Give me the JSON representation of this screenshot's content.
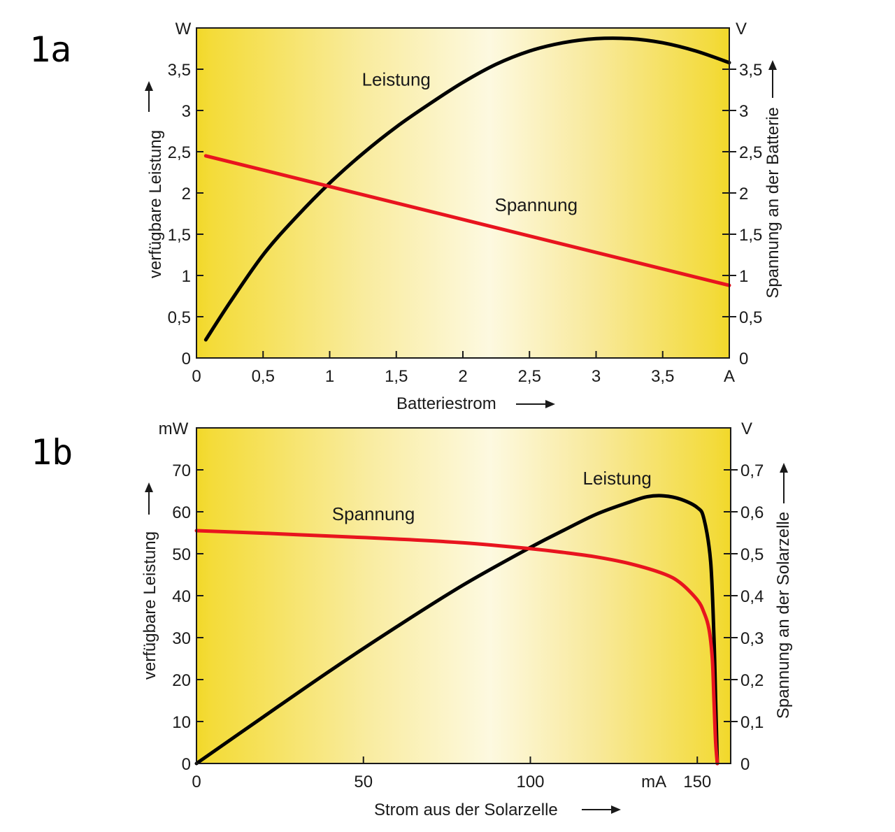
{
  "chart_data": [
    {
      "id": "1a",
      "panel_label": "1a",
      "type": "line",
      "x_axis": {
        "label": "Batteriestrom",
        "range": [
          0,
          4
        ],
        "ticks": [
          {
            "value": 0,
            "label": "0"
          },
          {
            "value": 0.5,
            "label": "0,5"
          },
          {
            "value": 1,
            "label": "1"
          },
          {
            "value": 1.5,
            "label": "1,5"
          },
          {
            "value": 2,
            "label": "2"
          },
          {
            "value": 2.5,
            "label": "2,5"
          },
          {
            "value": 3,
            "label": "3"
          },
          {
            "value": 3.5,
            "label": "3,5"
          },
          {
            "value": 4,
            "label": "A"
          }
        ]
      },
      "y_left": {
        "label": "verfügbare Leistung",
        "unit": "W",
        "range": [
          0,
          4
        ],
        "ticks": [
          {
            "value": 0,
            "label": "0"
          },
          {
            "value": 0.5,
            "label": "0,5"
          },
          {
            "value": 1,
            "label": "1"
          },
          {
            "value": 1.5,
            "label": "1,5"
          },
          {
            "value": 2,
            "label": "2"
          },
          {
            "value": 2.5,
            "label": "2,5"
          },
          {
            "value": 3,
            "label": "3"
          },
          {
            "value": 3.5,
            "label": "3,5"
          }
        ]
      },
      "y_right": {
        "label": "Spannung an der Batterie",
        "unit": "V",
        "range": [
          0,
          4
        ],
        "ticks": [
          {
            "value": 0,
            "label": "0"
          },
          {
            "value": 0.5,
            "label": "0,5"
          },
          {
            "value": 1,
            "label": "1"
          },
          {
            "value": 1.5,
            "label": "1,5"
          },
          {
            "value": 2,
            "label": "2"
          },
          {
            "value": 2.5,
            "label": "2,5"
          },
          {
            "value": 3,
            "label": "3"
          },
          {
            "value": 3.5,
            "label": "3,5"
          }
        ]
      },
      "series": [
        {
          "name": "Leistung",
          "axis": "left",
          "color": "#000000",
          "label_at": {
            "x": 1.5,
            "y": 3.3
          },
          "points": [
            [
              0.07,
              0.22
            ],
            [
              0.25,
              0.67
            ],
            [
              0.5,
              1.25
            ],
            [
              0.75,
              1.71
            ],
            [
              1.0,
              2.12
            ],
            [
              1.25,
              2.48
            ],
            [
              1.5,
              2.8
            ],
            [
              1.75,
              3.08
            ],
            [
              2.0,
              3.34
            ],
            [
              2.25,
              3.56
            ],
            [
              2.5,
              3.72
            ],
            [
              2.75,
              3.82
            ],
            [
              3.0,
              3.87
            ],
            [
              3.25,
              3.87
            ],
            [
              3.5,
              3.82
            ],
            [
              3.75,
              3.72
            ],
            [
              4.0,
              3.58
            ]
          ]
        },
        {
          "name": "Spannung",
          "axis": "right",
          "color": "#e8141e",
          "label_at": {
            "x": 2.55,
            "y": 1.78
          },
          "points": [
            [
              0.07,
              2.45
            ],
            [
              4.0,
              0.88
            ]
          ]
        }
      ]
    },
    {
      "id": "1b",
      "panel_label": "1b",
      "type": "line",
      "x_axis": {
        "label": "Strom aus der Solarzelle",
        "range": [
          0,
          160
        ],
        "ticks": [
          {
            "value": 0,
            "label": "0"
          },
          {
            "value": 50,
            "label": "50"
          },
          {
            "value": 100,
            "label": "100"
          },
          {
            "value": 150,
            "label": "150"
          }
        ],
        "unit_label": {
          "value": 137,
          "label": "mA"
        }
      },
      "y_left": {
        "label": "verfügbare Leistung",
        "unit": "mW",
        "range": [
          0,
          80
        ],
        "ticks": [
          {
            "value": 0,
            "label": "0"
          },
          {
            "value": 10,
            "label": "10"
          },
          {
            "value": 20,
            "label": "20"
          },
          {
            "value": 30,
            "label": "30"
          },
          {
            "value": 40,
            "label": "40"
          },
          {
            "value": 50,
            "label": "50"
          },
          {
            "value": 60,
            "label": "60"
          },
          {
            "value": 70,
            "label": "70"
          }
        ]
      },
      "y_right": {
        "label": "Spannung an der Solarzelle",
        "unit": "V",
        "range": [
          0,
          0.8
        ],
        "ticks": [
          {
            "value": 0,
            "label": "0"
          },
          {
            "value": 0.1,
            "label": "0,1"
          },
          {
            "value": 0.2,
            "label": "0,2"
          },
          {
            "value": 0.3,
            "label": "0,3"
          },
          {
            "value": 0.4,
            "label": "0,4"
          },
          {
            "value": 0.5,
            "label": "0,5"
          },
          {
            "value": 0.6,
            "label": "0,6"
          },
          {
            "value": 0.7,
            "label": "0,7"
          }
        ]
      },
      "series": [
        {
          "name": "Leistung",
          "axis": "left",
          "color": "#000000",
          "label_at": {
            "x": 126,
            "y": 66.5
          },
          "points": [
            [
              0,
              0
            ],
            [
              20,
              11.1
            ],
            [
              40,
              22.1
            ],
            [
              60,
              32.6
            ],
            [
              80,
              42.6
            ],
            [
              100,
              51.5
            ],
            [
              110,
              55.6
            ],
            [
              120,
              59.5
            ],
            [
              130,
              62.4
            ],
            [
              135,
              63.6
            ],
            [
              140,
              63.8
            ],
            [
              145,
              63.0
            ],
            [
              150,
              61.0
            ],
            [
              152,
              58.3
            ],
            [
              154,
              48.0
            ],
            [
              155,
              30.0
            ],
            [
              155.5,
              15.0
            ],
            [
              156,
              0
            ]
          ]
        },
        {
          "name": "Spannung",
          "axis": "right",
          "color": "#e8141e",
          "label_at": {
            "x": 53,
            "y": 0.58
          },
          "points": [
            [
              0,
              0.555
            ],
            [
              20,
              0.549
            ],
            [
              40,
              0.542
            ],
            [
              60,
              0.535
            ],
            [
              80,
              0.526
            ],
            [
              100,
              0.512
            ],
            [
              110,
              0.503
            ],
            [
              120,
              0.492
            ],
            [
              130,
              0.476
            ],
            [
              140,
              0.452
            ],
            [
              145,
              0.43
            ],
            [
              150,
              0.39
            ],
            [
              152,
              0.36
            ],
            [
              153.5,
              0.32
            ],
            [
              154.5,
              0.25
            ],
            [
              155,
              0.15
            ],
            [
              155.5,
              0.05
            ],
            [
              156,
              0
            ]
          ]
        }
      ]
    }
  ],
  "colors": {
    "power": "#000000",
    "voltage": "#e8141e",
    "bg_edge": "#f2d829",
    "bg_center": "#fdf8d8"
  }
}
